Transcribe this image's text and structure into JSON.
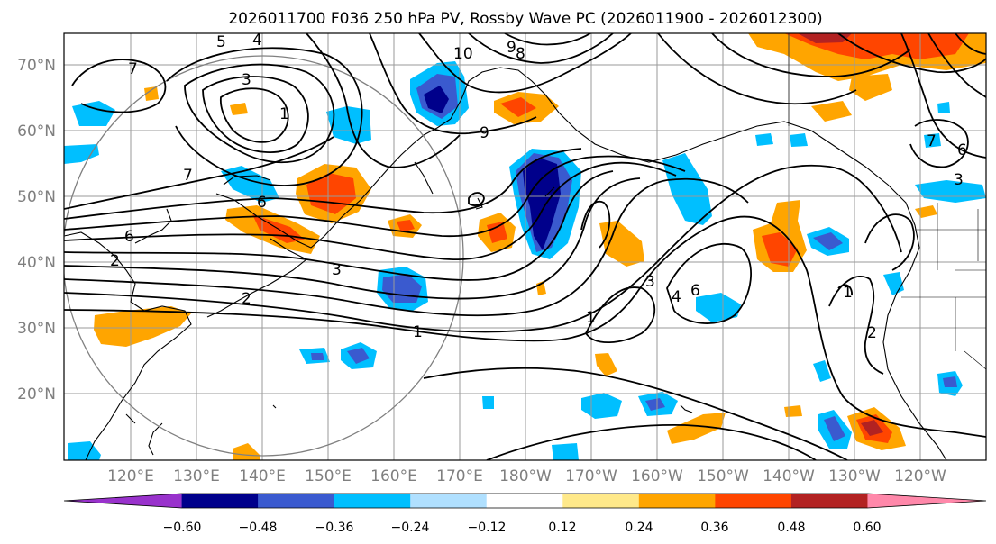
{
  "title": "2026011700 F036 250 hPa PV, Rossby Wave PC (2026011900 - 2026012300)",
  "map": {
    "lat_labels": [
      "70°N",
      "60°N",
      "50°N",
      "40°N",
      "30°N",
      "20°N"
    ],
    "lon_labels": [
      "120°E",
      "130°E",
      "140°E",
      "150°E",
      "160°E",
      "170°E",
      "180°W",
      "170°W",
      "160°W",
      "150°W",
      "140°W",
      "130°W",
      "120°W"
    ],
    "contour_labels": [
      "7",
      "3",
      "1",
      "5",
      "4",
      "10",
      "9",
      "8",
      "7",
      "9",
      "6",
      "6",
      "2",
      "2",
      "3",
      "1",
      "3",
      "4",
      "6",
      "1",
      "2",
      "1",
      "7",
      "6",
      "3"
    ]
  },
  "colorbar": {
    "ticks": [
      "−0.60",
      "−0.48",
      "−0.36",
      "−0.24",
      "−0.12",
      "0.12",
      "0.24",
      "0.36",
      "0.48",
      "0.60"
    ],
    "colors": [
      "#9932cc",
      "#00008b",
      "#3a5acf",
      "#00bfff",
      "#b0e0ff",
      "#ffffff",
      "#ffe98a",
      "#ffa500",
      "#ff4500",
      "#b22222",
      "#ff88aa"
    ]
  }
}
